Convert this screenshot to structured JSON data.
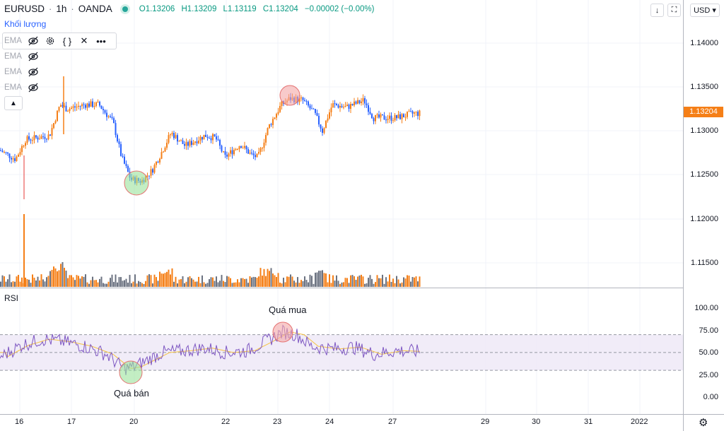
{
  "header": {
    "symbol": "EURUSD",
    "interval": "1h",
    "source": "OANDA",
    "open": "O1.13206",
    "high": "H1.13209",
    "low": "L1.13119",
    "close": "C1.13204",
    "change": "−0.00002 (−0.00%)"
  },
  "volume_label": "Khối lượng",
  "ema_rows": [
    "EMA",
    "EMA",
    "EMA",
    "EMA"
  ],
  "rsi_label": "RSI",
  "annotations": {
    "overbought": "Quá mua",
    "oversold": "Quá bán"
  },
  "price_axis": [
    "1.14000",
    "1.13500",
    "1.13000",
    "1.12500",
    "1.12000",
    "1.11500"
  ],
  "last_price": "1.13204",
  "rsi_axis": [
    "100.00",
    "75.00",
    "50.00",
    "25.00",
    "0.00"
  ],
  "time_axis": [
    "16",
    "17",
    "20",
    "22",
    "23",
    "24",
    "27",
    "29",
    "30",
    "31",
    "2022"
  ],
  "currency": "USD",
  "colors": {
    "up": "#f57f17",
    "down": "#2962ff",
    "rsi_line": "#7e57c2",
    "rsi_ma": "#f5c242",
    "overbought_circle": "#f4a7a7",
    "oversold_circle": "#9be39b"
  },
  "icons": {
    "eye_off": "eye-off-icon",
    "settings": "gear-icon",
    "source": "braces-icon",
    "remove": "close-icon",
    "more": "more-icon",
    "collapse": "chevron-up-icon"
  }
}
